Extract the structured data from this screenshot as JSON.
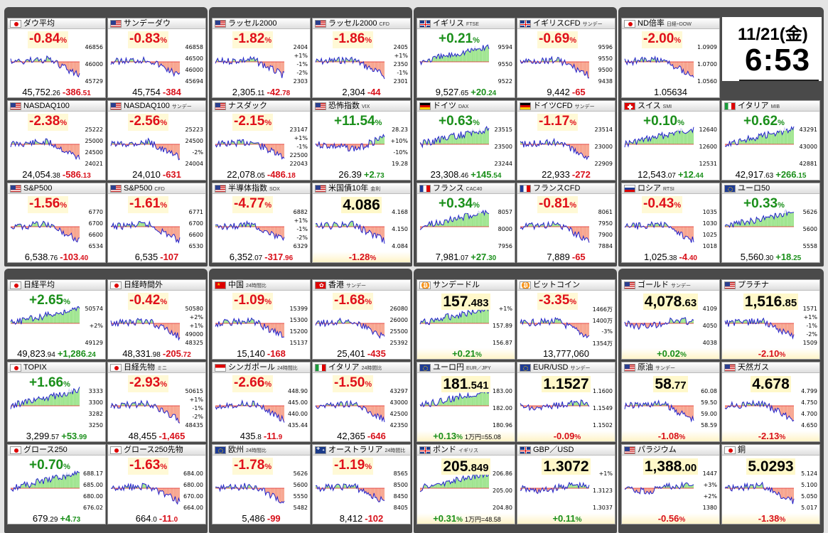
{
  "datetime": {
    "date": "11/21(金)",
    "time": "6:53"
  },
  "colors": {
    "up": "#1a8f1a",
    "down": "#e0101a",
    "line": "#2222cc",
    "up_fill": "#9fe58f",
    "down_fill": "#f7a48e"
  },
  "tiles": [
    {
      "row": 0,
      "col": 0,
      "flag": "jp",
      "name": "ダウ平均",
      "sub": "",
      "mode": "pct",
      "pct": "-0.84",
      "dir": "down",
      "value": "45,752",
      "value_dec": ".26",
      "change": "-386",
      "change_dec": ".51",
      "ticks": [
        "46856",
        "46000",
        "45729"
      ],
      "trend": "down",
      "seed": 1
    },
    {
      "row": 0,
      "col": 1,
      "flag": "us",
      "name": "サンデーダウ",
      "sub": "",
      "mode": "pct",
      "pct": "-0.83",
      "dir": "down",
      "value": "45,754",
      "value_dec": "",
      "change": "-384",
      "change_dec": "",
      "ticks": [
        "46858",
        "46500",
        "46000",
        "45694"
      ],
      "trend": "down",
      "seed": 2
    },
    {
      "row": 0,
      "col": 2,
      "flag": "us",
      "name": "ラッセル2000",
      "sub": "",
      "mode": "pct",
      "pct": "-1.82",
      "dir": "down",
      "value": "2,305",
      "value_dec": ".11",
      "change": "-42",
      "change_dec": ".78",
      "ticks": [
        "2404",
        "+1%",
        "-1%",
        "-2%",
        "2303"
      ],
      "trend": "down",
      "seed": 3
    },
    {
      "row": 0,
      "col": 3,
      "flag": "us",
      "name": "ラッセル2000",
      "sub": "CFD",
      "mode": "pct",
      "pct": "-1.86",
      "dir": "down",
      "value": "2,304",
      "value_dec": "",
      "change": "-44",
      "change_dec": "",
      "ticks": [
        "2405",
        "+1%",
        "2350",
        "-1%",
        "2301"
      ],
      "trend": "down",
      "seed": 4
    },
    {
      "row": 0,
      "col": 4,
      "flag": "uk",
      "name": "イギリス",
      "sub": "FTSE",
      "mode": "pct",
      "pct": "+0.21",
      "dir": "up",
      "value": "9,527",
      "value_dec": ".65",
      "change": "+20",
      "change_dec": ".24",
      "ticks": [
        "9594",
        "9550",
        "9522"
      ],
      "trend": "up",
      "seed": 5
    },
    {
      "row": 0,
      "col": 5,
      "flag": "uk",
      "name": "イギリスCFD",
      "sub": "サンデー",
      "mode": "pct",
      "pct": "-0.69",
      "dir": "down",
      "value": "9,442",
      "value_dec": "",
      "change": "-65",
      "change_dec": "",
      "ticks": [
        "9596",
        "9550",
        "9500",
        "9438"
      ],
      "trend": "down",
      "seed": 6
    },
    {
      "row": 0,
      "col": 6,
      "flag": "jp",
      "name": "ND倍率",
      "sub": "日経÷DOW",
      "mode": "pct",
      "pct": "-2.00",
      "dir": "down",
      "value": "1.05634",
      "value_dec": "",
      "change": "",
      "change_dec": "",
      "ticks": [
        "1.0909",
        "1.0700",
        "1.0560"
      ],
      "trend": "down",
      "seed": 7
    },
    {
      "row": 1,
      "col": 0,
      "flag": "us",
      "name": "NASDAQ100",
      "sub": "",
      "mode": "pct",
      "pct": "-2.38",
      "dir": "down",
      "value": "24,054",
      "value_dec": ".38",
      "change": "-586",
      "change_dec": ".13",
      "ticks": [
        "25222",
        "25000",
        "24500",
        "24021"
      ],
      "trend": "down",
      "seed": 8
    },
    {
      "row": 1,
      "col": 1,
      "flag": "us",
      "name": "NASDAQ100",
      "sub": "サンデー",
      "mode": "pct",
      "pct": "-2.56",
      "dir": "down",
      "value": "24,010",
      "value_dec": "",
      "change": "-631",
      "change_dec": "",
      "ticks": [
        "25223",
        "24500",
        "-2%",
        "24004"
      ],
      "trend": "down",
      "seed": 9
    },
    {
      "row": 1,
      "col": 2,
      "flag": "us",
      "name": "ナスダック",
      "sub": "",
      "mode": "pct",
      "pct": "-2.15",
      "dir": "down",
      "value": "22,078",
      "value_dec": ".05",
      "change": "-486",
      "change_dec": ".18",
      "ticks": [
        "23147",
        "+1%",
        "-1%",
        "22500",
        "22043"
      ],
      "trend": "down",
      "seed": 10
    },
    {
      "row": 1,
      "col": 3,
      "flag": "us",
      "name": "恐怖指数",
      "sub": "VIX",
      "mode": "pct",
      "pct": "+11.54",
      "dir": "up",
      "value": "26.39",
      "value_dec": "",
      "change": "+2",
      "change_dec": ".73",
      "ticks": [
        "28.23",
        "+10%",
        "-10%",
        "19.28"
      ],
      "trend": "vix",
      "seed": 11
    },
    {
      "row": 1,
      "col": 4,
      "flag": "de",
      "name": "ドイツ",
      "sub": "DAX",
      "mode": "pct",
      "pct": "+0.63",
      "dir": "up",
      "value": "23,308",
      "value_dec": ".46",
      "change": "+145",
      "change_dec": ".54",
      "ticks": [
        "23515",
        "23500",
        "23244"
      ],
      "trend": "up",
      "seed": 12
    },
    {
      "row": 1,
      "col": 5,
      "flag": "de",
      "name": "ドイツCFD",
      "sub": "サンデー",
      "mode": "pct",
      "pct": "-1.17",
      "dir": "down",
      "value": "22,933",
      "value_dec": "",
      "change": "-272",
      "change_dec": "",
      "ticks": [
        "23514",
        "23000",
        "22909"
      ],
      "trend": "down",
      "seed": 13
    },
    {
      "row": 1,
      "col": 6,
      "flag": "ch",
      "name": "スイス",
      "sub": "SMI",
      "mode": "pct",
      "pct": "+0.10",
      "dir": "up",
      "value": "12,543",
      "value_dec": ".07",
      "change": "+12",
      "change_dec": ".44",
      "ticks": [
        "12640",
        "12600",
        "12531"
      ],
      "trend": "up",
      "seed": 14
    },
    {
      "row": 1,
      "col": 7,
      "flag": "it",
      "name": "イタリア",
      "sub": "MIB",
      "mode": "pct",
      "pct": "+0.62",
      "dir": "up",
      "value": "42,917",
      "value_dec": ".63",
      "change": "+266",
      "change_dec": ".15",
      "ticks": [
        "43291",
        "43000",
        "42881"
      ],
      "trend": "up",
      "seed": 15
    },
    {
      "row": 2,
      "col": 0,
      "flag": "us",
      "name": "S&P500",
      "sub": "",
      "mode": "pct",
      "pct": "-1.56",
      "dir": "down",
      "value": "6,538",
      "value_dec": ".76",
      "change": "-103",
      "change_dec": ".40",
      "ticks": [
        "6770",
        "6700",
        "6600",
        "6534"
      ],
      "trend": "down",
      "seed": 16
    },
    {
      "row": 2,
      "col": 1,
      "flag": "us",
      "name": "S&P500",
      "sub": "CFD",
      "mode": "pct",
      "pct": "-1.61",
      "dir": "down",
      "value": "6,535",
      "value_dec": "",
      "change": "-107",
      "change_dec": "",
      "ticks": [
        "6771",
        "6700",
        "6600",
        "6530"
      ],
      "trend": "down",
      "seed": 17
    },
    {
      "row": 2,
      "col": 2,
      "flag": "us",
      "name": "半導体指数",
      "sub": "SOX",
      "mode": "pct",
      "pct": "-4.77",
      "dir": "down",
      "value": "6,352",
      "value_dec": ".07",
      "change": "-317",
      "change_dec": ".96",
      "ticks": [
        "6882",
        "+1%",
        "-1%",
        "-2%",
        "6329"
      ],
      "trend": "down",
      "seed": 18
    },
    {
      "row": 2,
      "col": 3,
      "flag": "us",
      "name": "米国債10年",
      "sub": "金利",
      "mode": "level",
      "level": "4.086",
      "level_dec": "",
      "dir": "down",
      "value": "",
      "value_dec": "",
      "change": "-1.28",
      "change_dec": "",
      "pct_suffix": "%",
      "ticks": [
        "4.168",
        "4.150",
        "4.084"
      ],
      "trend": "down",
      "seed": 19
    },
    {
      "row": 2,
      "col": 4,
      "flag": "fr",
      "name": "フランス",
      "sub": "CAC40",
      "mode": "pct",
      "pct": "+0.34",
      "dir": "up",
      "value": "7,981",
      "value_dec": ".07",
      "change": "+27",
      "change_dec": ".30",
      "ticks": [
        "8057",
        "8000",
        "7956"
      ],
      "trend": "up",
      "seed": 20
    },
    {
      "row": 2,
      "col": 5,
      "flag": "fr",
      "name": "フランスCFD",
      "sub": "",
      "mode": "pct",
      "pct": "-0.81",
      "dir": "down",
      "value": "7,889",
      "value_dec": "",
      "change": "-65",
      "change_dec": "",
      "ticks": [
        "8061",
        "7950",
        "7900",
        "7884"
      ],
      "trend": "down",
      "seed": 21
    },
    {
      "row": 2,
      "col": 6,
      "flag": "ru",
      "name": "ロシア",
      "sub": "RTSI",
      "mode": "pct",
      "pct": "-0.43",
      "dir": "down",
      "value": "1,025",
      "value_dec": ".38",
      "change": "-4",
      "change_dec": ".40",
      "ticks": [
        "1035",
        "1030",
        "1025",
        "1018"
      ],
      "trend": "down",
      "seed": 22
    },
    {
      "row": 2,
      "col": 7,
      "flag": "eu",
      "name": "ユーロ50",
      "sub": "",
      "mode": "pct",
      "pct": "+0.33",
      "dir": "up",
      "value": "5,560",
      "value_dec": ".30",
      "change": "+18",
      "change_dec": ".25",
      "ticks": [
        "5626",
        "5600",
        "5558"
      ],
      "trend": "up",
      "seed": 23
    },
    {
      "row": 3,
      "col": 0,
      "flag": "jp",
      "name": "日経平均",
      "sub": "",
      "mode": "pct",
      "pct": "+2.65",
      "dir": "up",
      "value": "49,823",
      "value_dec": ".94",
      "change": "+1,286",
      "change_dec": ".24",
      "ticks": [
        "50574",
        "+2%",
        "49129"
      ],
      "trend": "up",
      "seed": 24
    },
    {
      "row": 3,
      "col": 1,
      "flag": "jp",
      "name": "日経時間外",
      "sub": "",
      "mode": "pct",
      "pct": "-0.42",
      "dir": "down",
      "value": "48,331",
      "value_dec": ".98",
      "change": "-205",
      "change_dec": ".72",
      "ticks": [
        "50580",
        "+2%",
        "+1%",
        "49000",
        "48325"
      ],
      "trend": "down",
      "seed": 25
    },
    {
      "row": 3,
      "col": 2,
      "flag": "cn",
      "name": "中国",
      "sub": "24時間比",
      "mode": "pct",
      "pct": "-1.09",
      "dir": "down",
      "value": "15,140",
      "value_dec": "",
      "change": "-168",
      "change_dec": "",
      "ticks": [
        "15399",
        "15300",
        "15200",
        "15137"
      ],
      "trend": "down",
      "seed": 26
    },
    {
      "row": 3,
      "col": 3,
      "flag": "hk",
      "name": "香港",
      "sub": "サンデー",
      "mode": "pct",
      "pct": "-1.68",
      "dir": "down",
      "value": "25,401",
      "value_dec": "",
      "change": "-435",
      "change_dec": "",
      "ticks": [
        "26080",
        "26000",
        "25500",
        "25392"
      ],
      "trend": "down",
      "seed": 27
    },
    {
      "row": 3,
      "col": 4,
      "flag": "btc",
      "name": "サンデードル",
      "sub": "",
      "mode": "level",
      "level": "157",
      "level_dec": ".483",
      "dir": "up",
      "value": "",
      "value_dec": "",
      "change": "+0.21",
      "change_dec": "",
      "pct_suffix": "%",
      "ticks": [
        "+1%",
        "157.89",
        "156.87"
      ],
      "trend": "up",
      "seed": 28
    },
    {
      "row": 3,
      "col": 5,
      "flag": "btc",
      "name": "ビットコイン",
      "sub": "",
      "mode": "pct",
      "pct": "-3.35",
      "dir": "down",
      "value": "13,777,060",
      "value_dec": "",
      "change": "",
      "change_dec": "",
      "ticks": [
        "1466万",
        "1400万",
        "-3%",
        "1354万"
      ],
      "trend": "down",
      "seed": 29
    },
    {
      "row": 3,
      "col": 6,
      "flag": "us",
      "name": "ゴールド",
      "sub": "サンデー",
      "mode": "level",
      "level": "4,078",
      "level_dec": ".63",
      "dir": "up",
      "value": "",
      "value_dec": "",
      "change": "+0.02",
      "change_dec": "",
      "pct_suffix": "%",
      "ticks": [
        "4109",
        "4050",
        "4038"
      ],
      "trend": "flat",
      "seed": 30
    },
    {
      "row": 3,
      "col": 7,
      "flag": "us",
      "name": "プラチナ",
      "sub": "",
      "mode": "level",
      "level": "1,516",
      "level_dec": ".85",
      "dir": "down",
      "value": "",
      "value_dec": "",
      "change": "-2.10",
      "change_dec": "",
      "pct_suffix": "%",
      "ticks": [
        "1571",
        "+1%",
        "-1%",
        "-2%",
        "1509"
      ],
      "trend": "down",
      "seed": 31
    },
    {
      "row": 4,
      "col": 0,
      "flag": "jp",
      "name": "TOPIX",
      "sub": "",
      "mode": "pct",
      "pct": "+1.66",
      "dir": "up",
      "value": "3,299",
      "value_dec": ".57",
      "change": "+53",
      "change_dec": ".99",
      "ticks": [
        "3333",
        "3300",
        "3282",
        "3250"
      ],
      "trend": "up",
      "seed": 32
    },
    {
      "row": 4,
      "col": 1,
      "flag": "jp",
      "name": "日経先物",
      "sub": "ミニ",
      "mode": "pct",
      "pct": "-2.93",
      "dir": "down",
      "value": "48,455",
      "value_dec": "",
      "change": "-1,465",
      "change_dec": "",
      "ticks": [
        "50615",
        "+1%",
        "-1%",
        "-2%",
        "48435"
      ],
      "trend": "down",
      "seed": 33
    },
    {
      "row": 4,
      "col": 2,
      "flag": "sg",
      "name": "シンガポール",
      "sub": "24時間比",
      "mode": "pct",
      "pct": "-2.66",
      "dir": "down",
      "value": "435",
      "value_dec": ".8",
      "change": "-11",
      "change_dec": ".9",
      "ticks": [
        "448.90",
        "445.00",
        "440.00",
        "435.44"
      ],
      "trend": "down",
      "seed": 34
    },
    {
      "row": 4,
      "col": 3,
      "flag": "it",
      "name": "イタリア",
      "sub": "24時間比",
      "mode": "pct",
      "pct": "-1.50",
      "dir": "down",
      "value": "42,365",
      "value_dec": "",
      "change": "-646",
      "change_dec": "",
      "ticks": [
        "43297",
        "43000",
        "42500",
        "42350"
      ],
      "trend": "down",
      "seed": 35
    },
    {
      "row": 4,
      "col": 4,
      "flag": "eu",
      "name": "ユーロ円",
      "sub": "EUR／JPY",
      "mode": "level",
      "level": "181",
      "level_dec": ".541",
      "dir": "up",
      "value": "",
      "value_dec": "",
      "change": "+0.13",
      "change_dec": "",
      "pct_suffix": "%",
      "note": "1万円=55.08",
      "ticks": [
        "183.00",
        "182.00",
        "180.96"
      ],
      "trend": "up",
      "seed": 36
    },
    {
      "row": 4,
      "col": 5,
      "flag": "eu",
      "name": "EUR/USD",
      "sub": "サンデー",
      "mode": "level",
      "level": "1.1527",
      "level_dec": "",
      "dir": "down",
      "value": "",
      "value_dec": "",
      "change": "-0.09",
      "change_dec": "",
      "pct_suffix": "%",
      "ticks": [
        "1.1600",
        "1.1549",
        "1.1502"
      ],
      "trend": "flat",
      "seed": 37
    },
    {
      "row": 4,
      "col": 6,
      "flag": "us",
      "name": "原油",
      "sub": "サンデー",
      "mode": "level",
      "level": "58",
      "level_dec": ".77",
      "dir": "down",
      "value": "",
      "value_dec": "",
      "change": "-1.08",
      "change_dec": "",
      "pct_suffix": "%",
      "ticks": [
        "60.08",
        "59.50",
        "59.00",
        "58.59"
      ],
      "trend": "down",
      "seed": 38
    },
    {
      "row": 4,
      "col": 7,
      "flag": "us",
      "name": "天然ガス",
      "sub": "",
      "mode": "level",
      "level": "4.678",
      "level_dec": "",
      "dir": "down",
      "value": "",
      "value_dec": "",
      "change": "-2.13",
      "change_dec": "",
      "pct_suffix": "%",
      "ticks": [
        "4.799",
        "4.750",
        "4.700",
        "4.650"
      ],
      "trend": "down",
      "seed": 39
    },
    {
      "row": 5,
      "col": 0,
      "flag": "jp",
      "name": "グロース250",
      "sub": "",
      "mode": "pct",
      "pct": "+0.70",
      "dir": "up",
      "value": "679",
      "value_dec": ".29",
      "change": "+4",
      "change_dec": ".73",
      "ticks": [
        "688.17",
        "685.00",
        "680.00",
        "676.02"
      ],
      "trend": "up",
      "seed": 40
    },
    {
      "row": 5,
      "col": 1,
      "flag": "jp",
      "name": "グロース250先物",
      "sub": "",
      "mode": "pct",
      "pct": "-1.63",
      "dir": "down",
      "value": "664",
      "value_dec": ".0",
      "change": "-11",
      "change_dec": ".0",
      "ticks": [
        "684.00",
        "680.00",
        "670.00",
        "664.00"
      ],
      "trend": "down",
      "seed": 41
    },
    {
      "row": 5,
      "col": 2,
      "flag": "eu",
      "name": "欧州",
      "sub": "24時間比",
      "mode": "pct",
      "pct": "-1.78",
      "dir": "down",
      "value": "5,486",
      "value_dec": "",
      "change": "-99",
      "change_dec": "",
      "ticks": [
        "5626",
        "5600",
        "5550",
        "5482"
      ],
      "trend": "down",
      "seed": 42
    },
    {
      "row": 5,
      "col": 3,
      "flag": "au",
      "name": "オーストラリア",
      "sub": "24時間比",
      "mode": "pct",
      "pct": "-1.19",
      "dir": "down",
      "value": "8,412",
      "value_dec": "",
      "change": "-102",
      "change_dec": "",
      "ticks": [
        "8565",
        "8500",
        "8450",
        "8405"
      ],
      "trend": "down",
      "seed": 43
    },
    {
      "row": 5,
      "col": 4,
      "flag": "uk",
      "name": "ポンド",
      "sub": "イギリス",
      "mode": "level",
      "level": "205",
      "level_dec": ".849",
      "dir": "up",
      "value": "",
      "value_dec": "",
      "change": "+0.31",
      "change_dec": "",
      "pct_suffix": "%",
      "note": "1万円=48.58",
      "ticks": [
        "206.86",
        "205.00",
        "204.80"
      ],
      "trend": "up",
      "seed": 44
    },
    {
      "row": 5,
      "col": 5,
      "flag": "uk",
      "name": "GBP／USD",
      "sub": "",
      "mode": "level",
      "level": "1.3072",
      "level_dec": "",
      "dir": "up",
      "value": "",
      "value_dec": "",
      "change": "+0.11",
      "change_dec": "",
      "pct_suffix": "%",
      "ticks": [
        "+1%",
        "1.3123",
        "1.3037"
      ],
      "trend": "flat",
      "seed": 45
    },
    {
      "row": 5,
      "col": 6,
      "flag": "us",
      "name": "パラジウム",
      "sub": "",
      "mode": "level",
      "level": "1,388",
      "level_dec": ".00",
      "dir": "down",
      "value": "",
      "value_dec": "",
      "change": "-0.56",
      "change_dec": "",
      "pct_suffix": "%",
      "ticks": [
        "1447",
        "+3%",
        "+2%",
        "1380"
      ],
      "trend": "flat",
      "seed": 46
    },
    {
      "row": 5,
      "col": 7,
      "flag": "jp",
      "name": "銅",
      "sub": "",
      "mode": "level",
      "level": "5.0293",
      "level_dec": "",
      "dir": "down",
      "value": "",
      "value_dec": "",
      "change": "-1.38",
      "change_dec": "",
      "pct_suffix": "%",
      "ticks": [
        "5.124",
        "5.100",
        "5.050",
        "5.017"
      ],
      "trend": "down",
      "seed": 47
    }
  ]
}
